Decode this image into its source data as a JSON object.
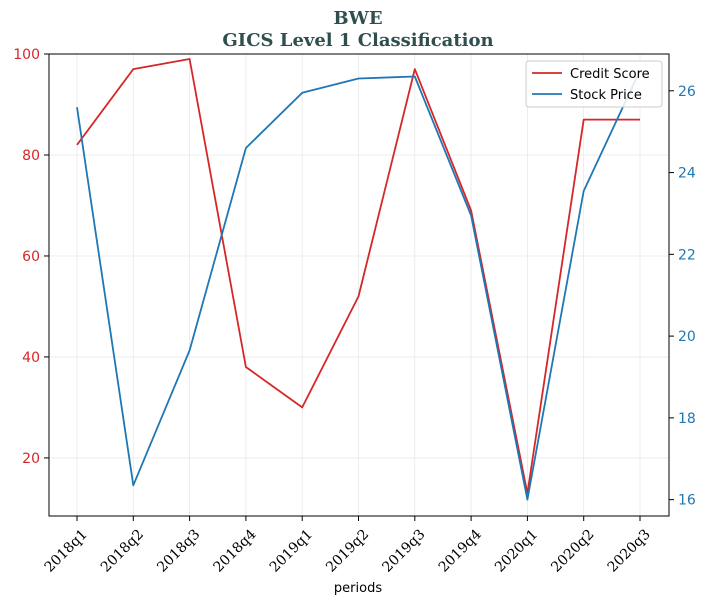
{
  "chart_data": {
    "type": "line",
    "title": "BWE",
    "subtitle": "GICS Level 1 Classification",
    "xlabel": "periods",
    "categories": [
      "2018q1",
      "2018q2",
      "2018q3",
      "2018q4",
      "2019q1",
      "2019q2",
      "2019q3",
      "2019q4",
      "2020q1",
      "2020q2",
      "2020q3"
    ],
    "grid": true,
    "legend_position": "top-right",
    "left_axis": {
      "ylim": [
        8.5,
        100
      ],
      "ticks": [
        20,
        40,
        60,
        80,
        100
      ],
      "color": "#d62728"
    },
    "right_axis": {
      "ylim": [
        15.6,
        26.9
      ],
      "ticks": [
        16,
        18,
        20,
        22,
        24,
        26
      ],
      "color": "#1f77b4"
    },
    "series": [
      {
        "name": "Credit Score",
        "axis": "left",
        "color": "#d62728",
        "values": [
          82,
          97,
          99,
          38,
          30,
          52,
          97,
          69,
          13,
          87,
          87
        ]
      },
      {
        "name": "Stock Price",
        "axis": "right",
        "color": "#1f77b4",
        "values": [
          25.6,
          16.35,
          19.65,
          24.6,
          25.95,
          26.3,
          26.35,
          22.95,
          16.0,
          23.55,
          26.5
        ]
      }
    ]
  }
}
